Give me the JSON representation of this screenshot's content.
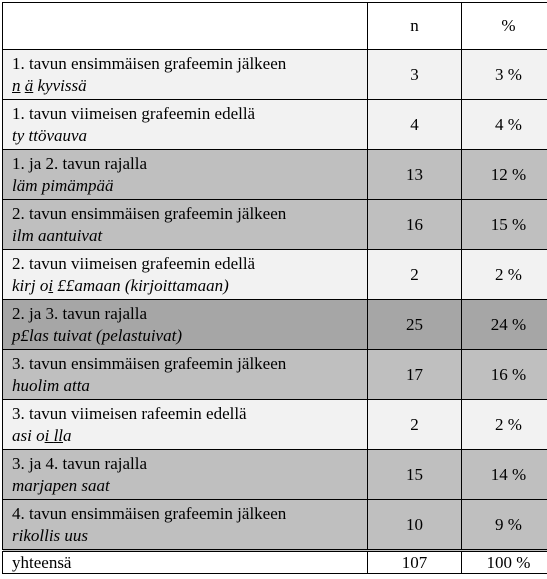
{
  "header": {
    "col_label": "",
    "col_n": "n",
    "col_pct": "%"
  },
  "rows": [
    {
      "label": "1. tavun ensimmäisen grafeemin jälkeen",
      "example": [
        "n",
        " ",
        "ä",
        " kyvissä"
      ],
      "n": "3",
      "pct": "3 %"
    },
    {
      "label": "1. tavun viimeisen grafeemin edellä",
      "example": [
        "ty ttövauva"
      ],
      "n": "4",
      "pct": "4 %"
    },
    {
      "label": "1. ja 2. tavun rajalla",
      "example": [
        "läm pimämpää"
      ],
      "n": "13",
      "pct": "12 %"
    },
    {
      "label": "2. tavun ensimmäisen grafeemin jälkeen",
      "example": [
        "ilm aantuivat"
      ],
      "n": "16",
      "pct": "15 %"
    },
    {
      "label": "2. tavun viimeisen grafeemin edellä",
      "example": [
        "kirj o",
        "i",
        " ££amaan (kirjoittamaan)"
      ],
      "n": "2",
      "pct": "2 %"
    },
    {
      "label": "2. ja 3. tavun rajalla",
      "example": [
        "p£las tuivat (pelastuivat)"
      ],
      "n": "25",
      "pct": "24 %"
    },
    {
      "label": "3. tavun ensimmäisen grafeemin jälkeen",
      "example": [
        "huolim atta"
      ],
      "n": "17",
      "pct": "16 %"
    },
    {
      "label": "3. tavun viimeisen rafeemin edellä",
      "example": [
        "asi o",
        "i ",
        "ll",
        "a"
      ],
      "n": "2",
      "pct": "2 %"
    },
    {
      "label": "3. ja 4. tavun rajalla",
      "example": [
        "marjapen saat"
      ],
      "n": "15",
      "pct": "14 %"
    },
    {
      "label": "4. tavun ensimmäisen grafeemin jälkeen",
      "example": [
        "rikollis uus"
      ],
      "n": "10",
      "pct": "9 %"
    }
  ],
  "total": {
    "label": "yhteensä",
    "n": "107",
    "pct": "100 %"
  },
  "colors": {
    "white": "#ffffff",
    "shade_1": "#f2f2f2",
    "shade_2": "#d9d9d9",
    "shade_3": "#bfbfbf",
    "shade_4": "#a6a6a6"
  }
}
